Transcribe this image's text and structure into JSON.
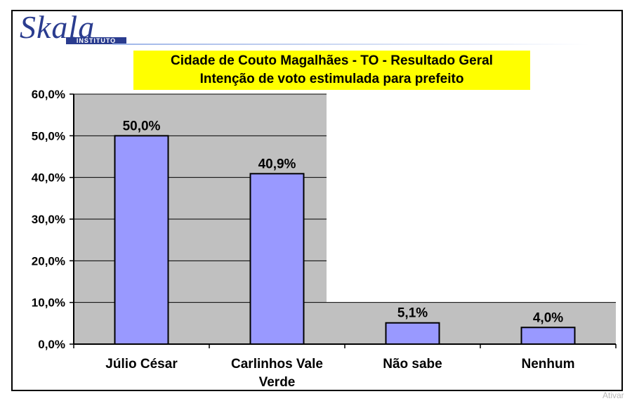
{
  "logo": {
    "name": "Skala",
    "subtitle": "INSTITUTO"
  },
  "watermark": "Ativar",
  "chart_data": {
    "type": "bar",
    "title": "Cidade de Couto Magalhães - TO - Resultado Geral",
    "subtitle": "Intenção de voto estimulada para prefeito",
    "categories": [
      "Júlio César",
      "Carlinhos Vale Verde",
      "Não sabe",
      "Nenhum"
    ],
    "category_lines": [
      [
        "Júlio César"
      ],
      [
        "Carlinhos Vale",
        "Verde"
      ],
      [
        "Não sabe"
      ],
      [
        "Nenhum"
      ]
    ],
    "values": [
      50.0,
      40.9,
      5.1,
      4.0
    ],
    "data_labels": [
      "50,0%",
      "40,9%",
      "5,1%",
      "4,0%"
    ],
    "ylim": [
      0,
      60
    ],
    "yticks": [
      0,
      10,
      20,
      30,
      40,
      50,
      60
    ],
    "ytick_labels": [
      "0,0%",
      "10,0%",
      "20,0%",
      "30,0%",
      "40,0%",
      "50,0%",
      "60,0%"
    ],
    "xlabel": "",
    "ylabel": "",
    "grid": true,
    "colors": {
      "bar": "#9999ff",
      "plot_area": "#c0c0c0",
      "title_background": "#ffff00"
    }
  }
}
